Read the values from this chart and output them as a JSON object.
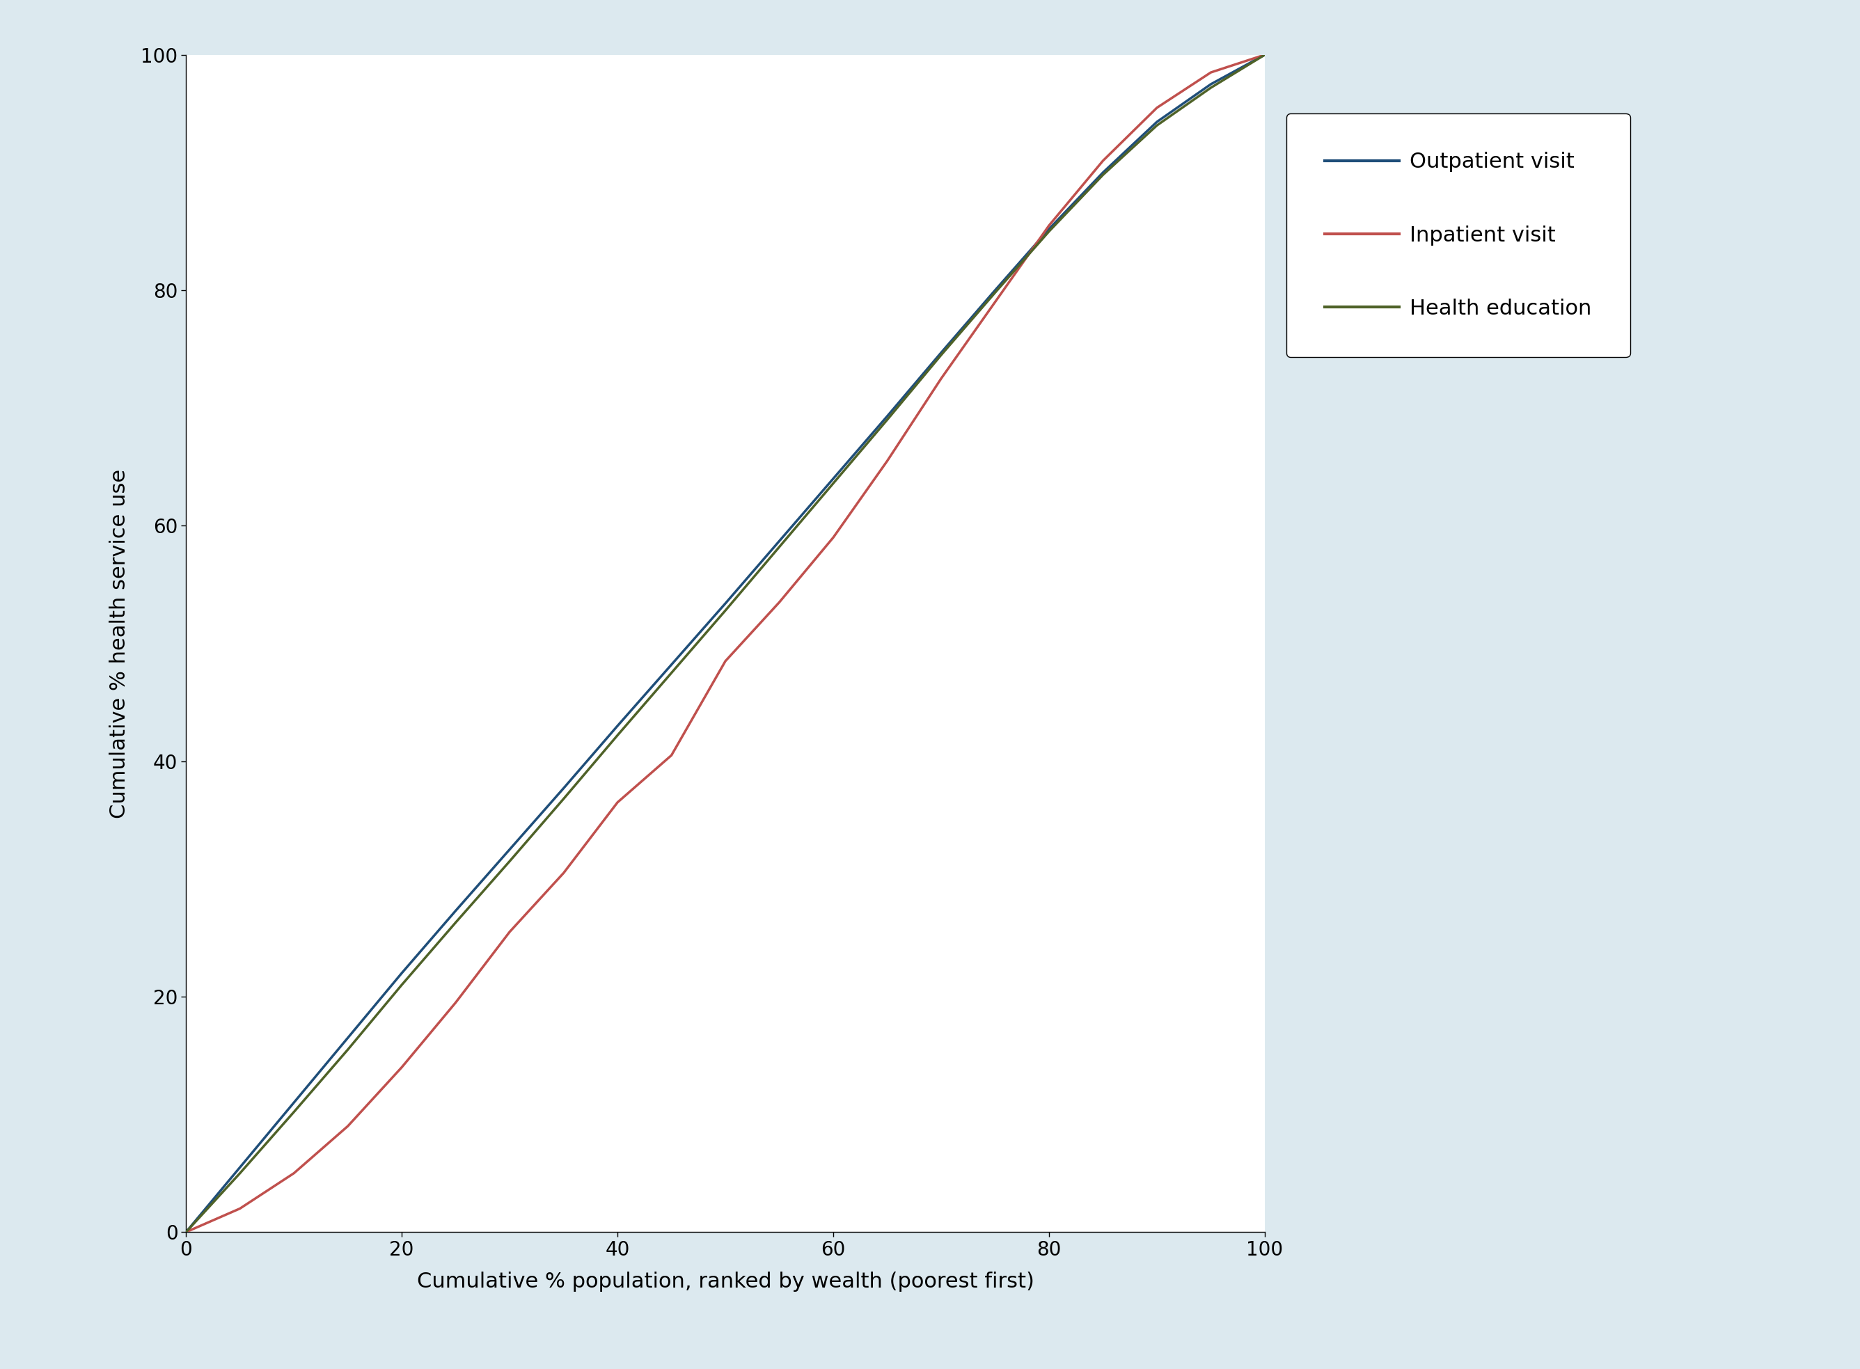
{
  "background_color": "#dce9ef",
  "plot_bg_color": "#ffffff",
  "xlabel": "Cumulative % population, ranked by wealth (poorest first)",
  "ylabel": "Cumulative % health service use",
  "xlim": [
    0,
    100
  ],
  "ylim": [
    0,
    100
  ],
  "xticks": [
    0,
    20,
    40,
    60,
    80,
    100
  ],
  "yticks": [
    0,
    20,
    40,
    60,
    80,
    100
  ],
  "legend_labels": [
    "Outpatient visit",
    "Inpatient visit",
    "Health education"
  ],
  "legend_colors": [
    "#1f4e79",
    "#c0504d",
    "#4f6228"
  ],
  "outpatient_x": [
    0,
    5,
    10,
    15,
    20,
    25,
    30,
    35,
    40,
    45,
    50,
    55,
    60,
    65,
    70,
    75,
    80,
    85,
    90,
    95,
    100
  ],
  "outpatient_y": [
    0,
    5.5,
    11.0,
    16.5,
    22.0,
    27.3,
    32.5,
    37.7,
    43.0,
    48.2,
    53.4,
    58.7,
    64.0,
    69.3,
    74.7,
    80.0,
    85.2,
    90.0,
    94.3,
    97.5,
    100
  ],
  "inpatient_x": [
    0,
    5,
    10,
    15,
    20,
    25,
    30,
    35,
    40,
    45,
    50,
    55,
    60,
    65,
    70,
    75,
    80,
    85,
    90,
    95,
    100
  ],
  "inpatient_y": [
    0,
    2.0,
    5.0,
    9.0,
    14.0,
    19.5,
    25.5,
    30.5,
    36.5,
    40.5,
    48.5,
    53.5,
    59.0,
    65.5,
    72.5,
    79.0,
    85.5,
    91.0,
    95.5,
    98.5,
    100
  ],
  "health_ed_x": [
    0,
    5,
    10,
    15,
    20,
    25,
    30,
    35,
    40,
    45,
    50,
    55,
    60,
    65,
    70,
    75,
    80,
    85,
    90,
    95,
    100
  ],
  "health_ed_y": [
    0,
    5.0,
    10.2,
    15.5,
    21.0,
    26.3,
    31.5,
    36.8,
    42.2,
    47.5,
    52.8,
    58.2,
    63.6,
    69.0,
    74.5,
    79.8,
    85.0,
    89.8,
    94.0,
    97.2,
    100
  ],
  "line_width": 2.5,
  "tick_fontsize": 20,
  "label_fontsize": 22,
  "legend_fontsize": 22
}
